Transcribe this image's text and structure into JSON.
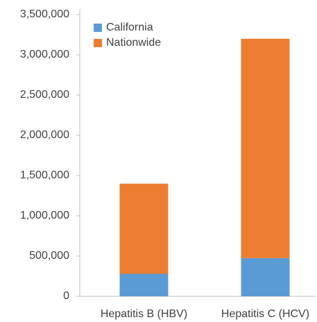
{
  "chart_data": {
    "type": "bar",
    "stacked": true,
    "categories": [
      "Hepatitis B (HBV)",
      "Hepatitis C (HCV)"
    ],
    "series": [
      {
        "name": "California",
        "color": "#5b9bd5",
        "values": [
          280000,
          475000
        ]
      },
      {
        "name": "Nationwide",
        "color": "#ed7d31",
        "values": [
          1120000,
          2725000
        ]
      }
    ],
    "ylim": [
      0,
      3500000
    ],
    "yticks": [
      0,
      {
        "value": 500000,
        "label": "500,000"
      },
      {
        "value": 1000000,
        "label": "1,000,000"
      },
      {
        "value": 1500000,
        "label": "1,500,000"
      },
      {
        "value": 2000000,
        "label": "2,000,000"
      },
      {
        "value": 2500000,
        "label": "2,500,000"
      },
      {
        "value": 3000000,
        "label": "3,000,000"
      },
      {
        "value": 3500000,
        "label": "3,500,000"
      }
    ],
    "grid": false,
    "legend": "top-left"
  }
}
